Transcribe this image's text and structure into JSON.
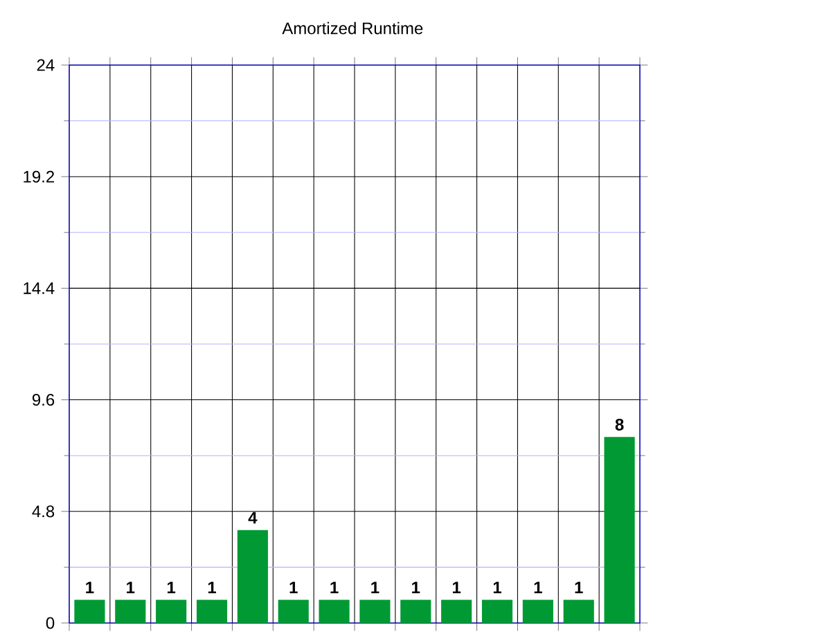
{
  "chart_data": {
    "type": "bar",
    "title": "Amortized Runtime",
    "categories": [
      null,
      null,
      null,
      null,
      null,
      null,
      null,
      null,
      null,
      null,
      null,
      null,
      null,
      null
    ],
    "values": [
      1,
      1,
      1,
      1,
      4,
      1,
      1,
      1,
      1,
      1,
      1,
      1,
      1,
      8
    ],
    "color": "#009933",
    "ylim": [
      0,
      24
    ],
    "yticks": [
      0,
      {
        "value": 2.4,
        "label": null
      },
      4.8,
      {
        "value": 7.2,
        "label": null
      },
      9.6,
      {
        "value": 12,
        "label": null
      },
      14.4,
      {
        "value": 16.8,
        "label": null
      },
      19.2,
      {
        "value": 21.6,
        "label": null
      },
      24
    ],
    "grid": true,
    "data_labels": true
  }
}
